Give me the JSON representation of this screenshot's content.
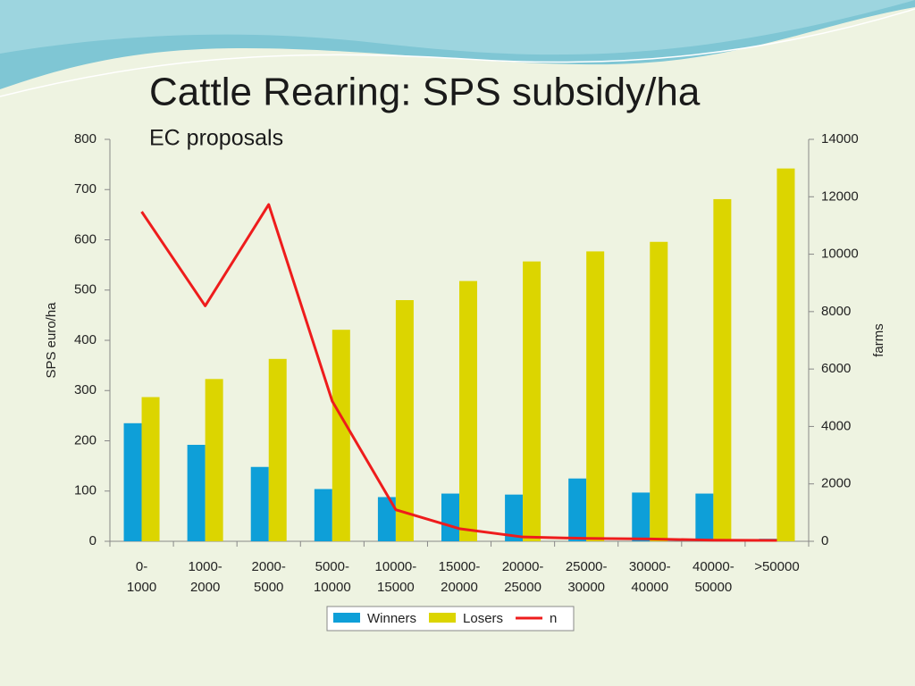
{
  "chart_data": {
    "type": "bar_line",
    "title": "Cattle Rearing: SPS subsidy/ha",
    "subtitle": "EC proposals",
    "ylabel": "SPS euro/ha",
    "y2label": "farms",
    "categories": [
      "0-1000",
      "1000-2000",
      "2000-5000",
      "5000-10000",
      "10000-15000",
      "15000-20000",
      "20000-25000",
      "25000-30000",
      "30000-40000",
      "40000-50000",
      ">50000"
    ],
    "series": [
      {
        "name": "Winners",
        "color": "#0e9fd8",
        "kind": "bar",
        "values": [
          235,
          192,
          148,
          104,
          88,
          95,
          93,
          125,
          97,
          95,
          5
        ]
      },
      {
        "name": "Losers",
        "color": "#dcd500",
        "kind": "bar",
        "values": [
          287,
          323,
          363,
          421,
          480,
          518,
          557,
          577,
          596,
          681,
          742
        ]
      },
      {
        "name": "n",
        "color": "#ee1c1c",
        "kind": "line",
        "axis": "y2",
        "values": [
          11480,
          8200,
          11730,
          4880,
          1100,
          440,
          150,
          100,
          80,
          40,
          30
        ]
      }
    ],
    "ylim": [
      0,
      800
    ],
    "yticks": [
      0,
      100,
      200,
      300,
      400,
      500,
      600,
      700,
      800
    ],
    "y2lim": [
      0,
      14000
    ],
    "y2ticks": [
      0,
      2000,
      4000,
      6000,
      8000,
      10000,
      12000,
      14000
    ],
    "legend": "bottom"
  }
}
